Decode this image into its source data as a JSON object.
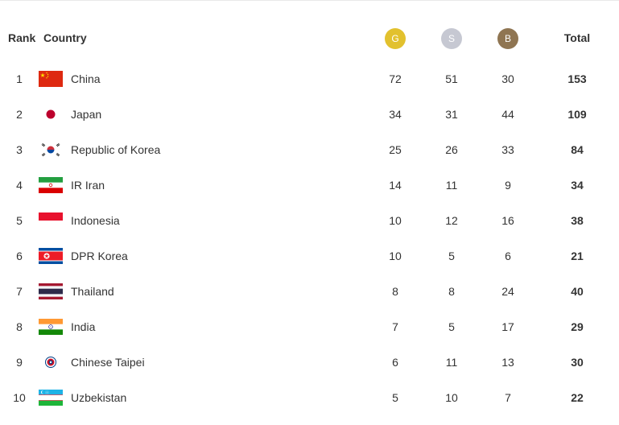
{
  "header": {
    "rank": "Rank",
    "country": "Country",
    "gold": "G",
    "silver": "S",
    "bronze": "B",
    "total": "Total"
  },
  "colors": {
    "gold": "#e2c12e",
    "silver": "#c6c8d2",
    "bronze": "#8f7552"
  },
  "rows": [
    {
      "rank": "1",
      "country": "China",
      "flag": "china-flag-icon",
      "gold": "72",
      "silver": "51",
      "bronze": "30",
      "total": "153"
    },
    {
      "rank": "2",
      "country": "Japan",
      "flag": "japan-flag-icon",
      "gold": "34",
      "silver": "31",
      "bronze": "44",
      "total": "109"
    },
    {
      "rank": "3",
      "country": "Republic of Korea",
      "flag": "korea-flag-icon",
      "gold": "25",
      "silver": "26",
      "bronze": "33",
      "total": "84"
    },
    {
      "rank": "4",
      "country": "IR Iran",
      "flag": "iran-flag-icon",
      "gold": "14",
      "silver": "11",
      "bronze": "9",
      "total": "34"
    },
    {
      "rank": "5",
      "country": "Indonesia",
      "flag": "indonesia-flag-icon",
      "gold": "10",
      "silver": "12",
      "bronze": "16",
      "total": "38"
    },
    {
      "rank": "6",
      "country": "DPR Korea",
      "flag": "dpr-korea-flag-icon",
      "gold": "10",
      "silver": "5",
      "bronze": "6",
      "total": "21"
    },
    {
      "rank": "7",
      "country": "Thailand",
      "flag": "thailand-flag-icon",
      "gold": "8",
      "silver": "8",
      "bronze": "24",
      "total": "40"
    },
    {
      "rank": "8",
      "country": "India",
      "flag": "india-flag-icon",
      "gold": "7",
      "silver": "5",
      "bronze": "17",
      "total": "29"
    },
    {
      "rank": "9",
      "country": "Chinese Taipei",
      "flag": "chinese-taipei-flag-icon",
      "gold": "6",
      "silver": "11",
      "bronze": "13",
      "total": "30"
    },
    {
      "rank": "10",
      "country": "Uzbekistan",
      "flag": "uzbekistan-flag-icon",
      "gold": "5",
      "silver": "10",
      "bronze": "7",
      "total": "22"
    }
  ]
}
